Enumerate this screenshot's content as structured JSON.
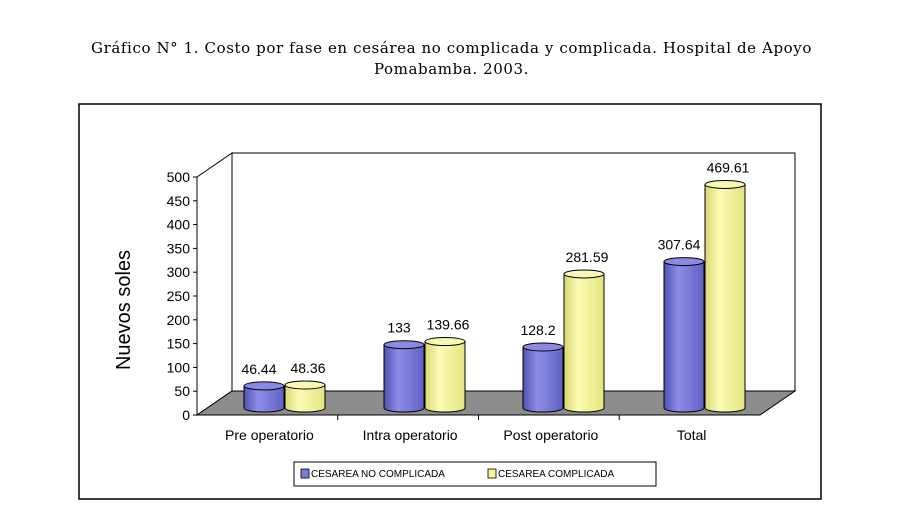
{
  "figure_title_line1": "Gráfico N° 1. Costo por fase en cesárea no complicada y complicada. Hospital de Apoyo",
  "figure_title_line2": "Pomabamba. 2003.",
  "chart_data": {
    "type": "bar",
    "style": "3d-cylinder",
    "categories": [
      "Pre operatorio",
      "Intra operatorio",
      "Post operatorio",
      "Total"
    ],
    "series": [
      {
        "name": "CESAREA NO COMPLICADA",
        "values": [
          46.44,
          133,
          128.2,
          307.64
        ],
        "color": "#7b7bdc"
      },
      {
        "name": "CESAREA COMPLICADA",
        "values": [
          48.36,
          139.66,
          281.59,
          469.61
        ],
        "color": "#f4f49c"
      }
    ],
    "data_labels": [
      [
        "46.44",
        "133",
        "128.2",
        "307.64"
      ],
      [
        "48.36",
        "139.66",
        "281.59",
        "469.61"
      ]
    ],
    "ylabel": "Nuevos soles",
    "xlabel": "",
    "ylim": [
      0,
      500
    ],
    "yticks": [
      "0",
      "50",
      "100",
      "150",
      "200",
      "250",
      "300",
      "350",
      "400",
      "450",
      "500"
    ],
    "grid": false,
    "legend": "bottom",
    "floor_color": "#8c8c8c"
  }
}
